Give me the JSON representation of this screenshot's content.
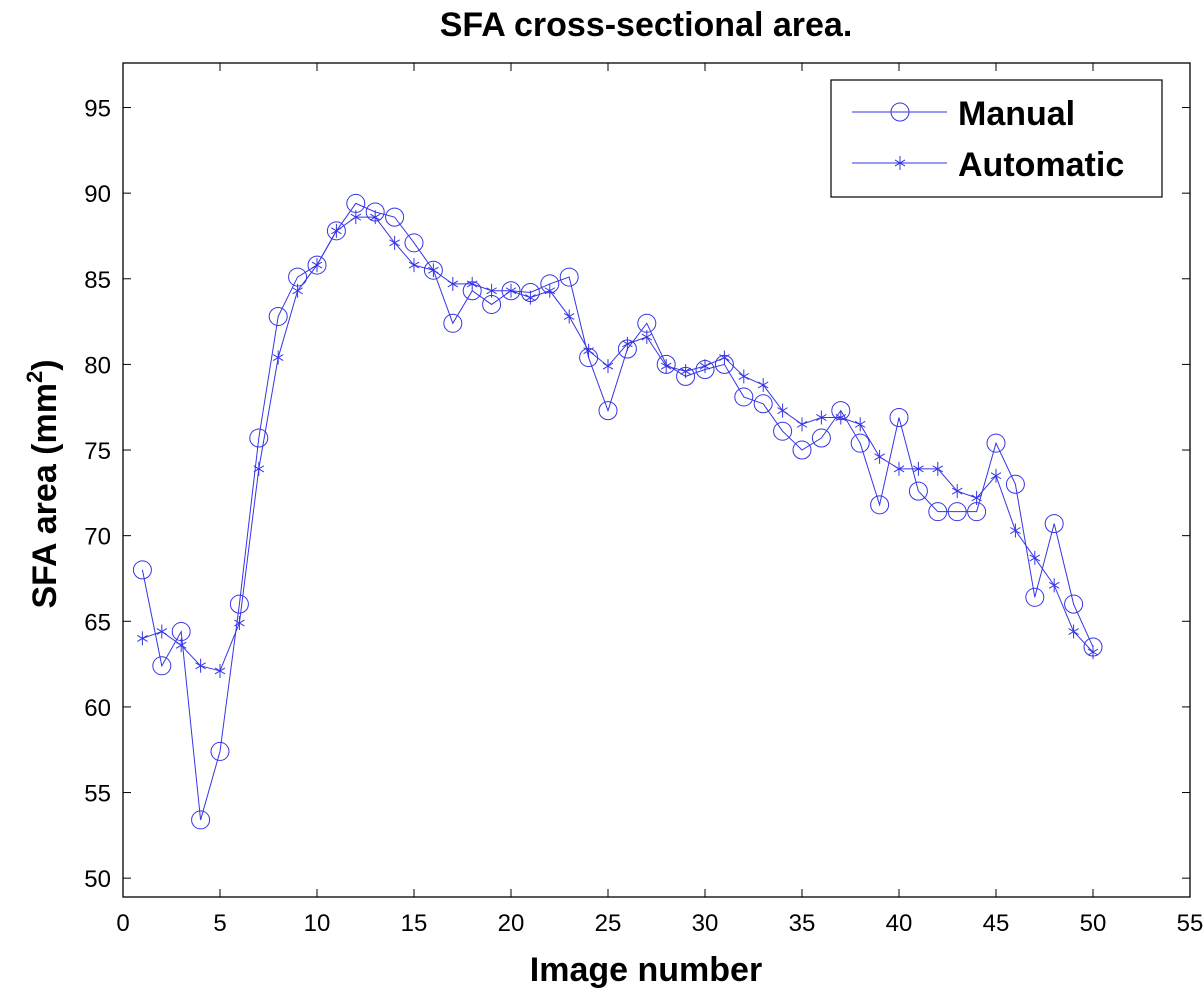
{
  "chart_data": {
    "type": "line",
    "title": "SFA cross-sectional area.",
    "xlabel": "Image number",
    "ylabel_main": "SFA area (mm",
    "ylabel_sup": "2",
    "ylabel_end": ")",
    "xlim": [
      0,
      55
    ],
    "ylim": [
      48.9,
      97.6
    ],
    "xticks": [
      0,
      5,
      10,
      15,
      20,
      25,
      30,
      35,
      40,
      45,
      50,
      55
    ],
    "yticks": [
      50,
      55,
      60,
      65,
      70,
      75,
      80,
      85,
      90,
      95
    ],
    "grid": false,
    "legend_position": "top-right",
    "line_color": "#3535e6",
    "x": [
      1,
      2,
      3,
      4,
      5,
      6,
      7,
      8,
      9,
      10,
      11,
      12,
      13,
      14,
      15,
      16,
      17,
      18,
      19,
      20,
      21,
      22,
      23,
      24,
      25,
      26,
      27,
      28,
      29,
      30,
      31,
      32,
      33,
      34,
      35,
      36,
      37,
      38,
      39,
      40,
      41,
      42,
      43,
      44,
      45,
      46,
      47,
      48,
      49,
      50
    ],
    "series": [
      {
        "name": "Manual",
        "marker": "circle",
        "values": [
          68.0,
          62.4,
          64.4,
          53.4,
          57.4,
          66.0,
          75.7,
          82.8,
          85.1,
          85.8,
          87.8,
          89.4,
          88.9,
          88.6,
          87.1,
          85.5,
          82.4,
          84.3,
          83.5,
          84.3,
          84.2,
          84.7,
          85.1,
          80.4,
          77.3,
          80.9,
          82.4,
          80.0,
          79.3,
          79.7,
          80.0,
          78.1,
          77.7,
          76.1,
          75.0,
          75.7,
          77.3,
          75.4,
          71.8,
          76.9,
          72.6,
          71.4,
          71.4,
          71.4,
          75.4,
          73.0,
          66.4,
          70.7,
          66.0,
          63.5
        ]
      },
      {
        "name": "Automatic",
        "marker": "star",
        "values": [
          64.0,
          64.4,
          63.6,
          62.4,
          62.1,
          64.9,
          73.9,
          80.4,
          84.3,
          85.8,
          87.8,
          88.6,
          88.6,
          87.1,
          85.8,
          85.5,
          84.7,
          84.7,
          84.3,
          84.3,
          83.9,
          84.3,
          82.8,
          80.8,
          79.9,
          81.2,
          81.6,
          79.9,
          79.6,
          79.9,
          80.4,
          79.3,
          78.8,
          77.3,
          76.5,
          76.9,
          76.9,
          76.5,
          74.6,
          73.9,
          73.9,
          73.9,
          72.6,
          72.2,
          73.5,
          70.3,
          68.7,
          67.1,
          64.4,
          63.2
        ]
      }
    ]
  }
}
